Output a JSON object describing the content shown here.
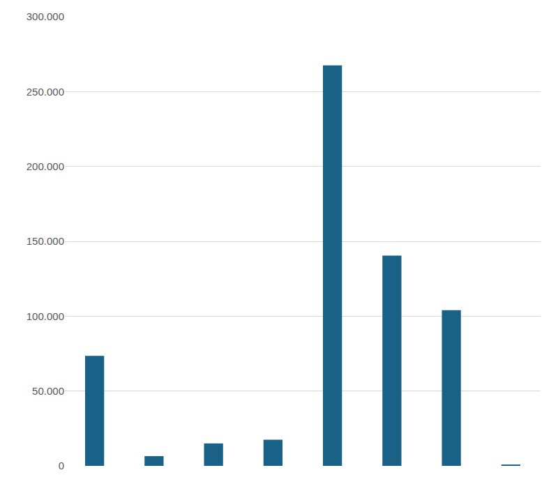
{
  "chart_data": {
    "type": "bar",
    "categories": [
      null,
      null,
      null,
      null,
      null,
      null,
      null,
      null
    ],
    "values": [
      73500,
      6500,
      15000,
      17500,
      267500,
      140500,
      104000,
      900
    ],
    "color": "#1a6187",
    "ylim": [
      0,
      300000
    ],
    "yticks": [
      0,
      {
        "value": 50000,
        "label": "50.000"
      },
      {
        "value": 100000,
        "label": "100.000"
      },
      {
        "value": 150000,
        "label": "150.000"
      },
      {
        "value": 200000,
        "label": "200.000"
      },
      {
        "value": 250000,
        "label": "250.000"
      },
      {
        "value": 300000,
        "label": "300.000"
      }
    ],
    "grid": true,
    "tick_labels": "y"
  }
}
